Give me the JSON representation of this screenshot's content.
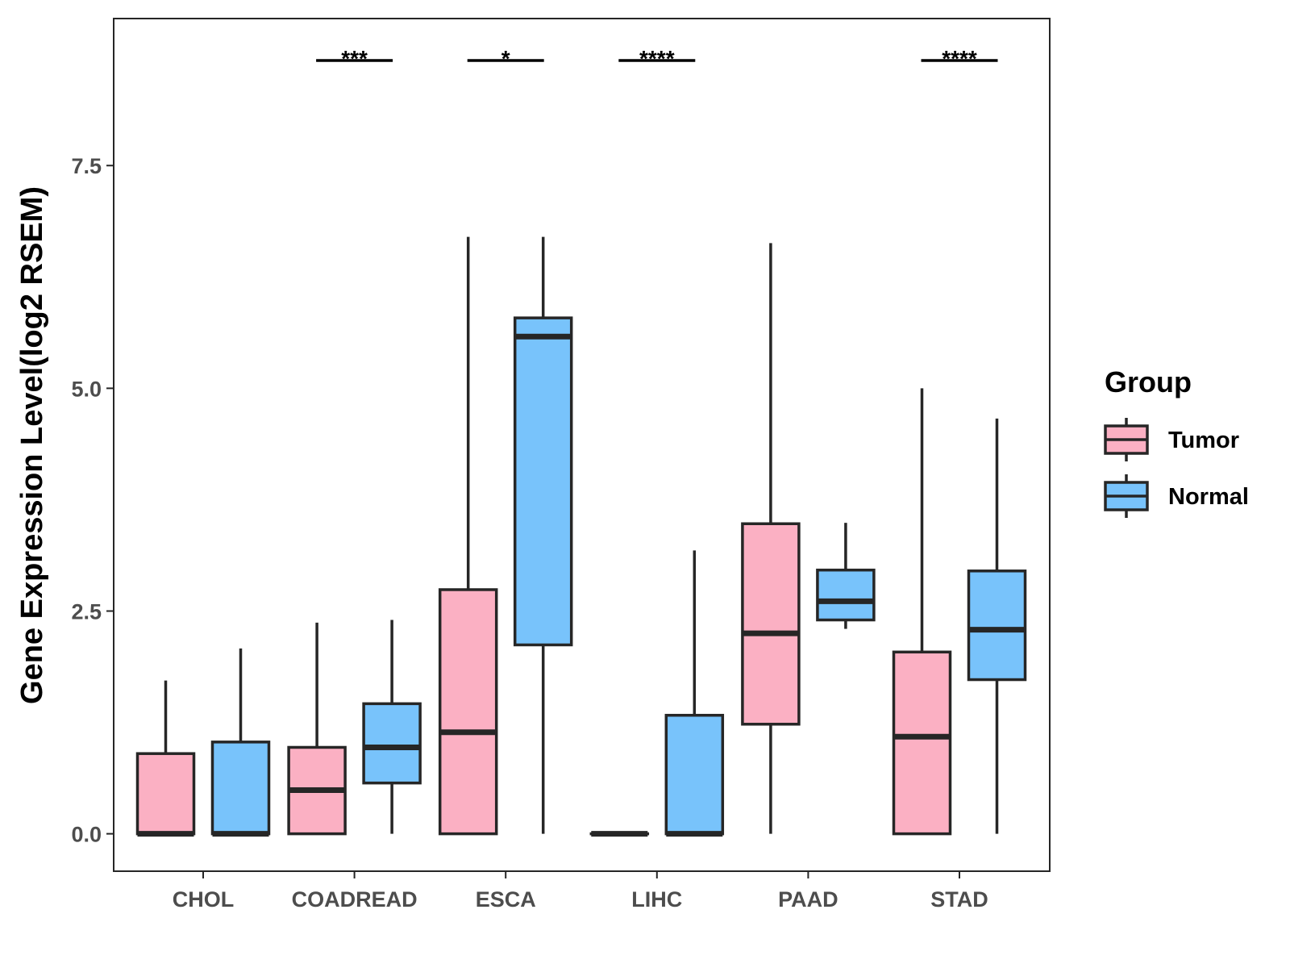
{
  "chart_data": {
    "type": "box",
    "title": "",
    "xlabel": "",
    "ylabel": "Gene Expression Level(log2 RSEM)",
    "ylim": [
      -0.42,
      9.15
    ],
    "yticks": [
      0.0,
      2.5,
      5.0,
      7.5
    ],
    "ytick_labels": [
      "0.0",
      "2.5",
      "5.0",
      "7.5"
    ],
    "categories": [
      "CHOL",
      "COADREAD",
      "ESCA",
      "LIHC",
      "PAAD",
      "STAD"
    ],
    "legend": {
      "title": "Group",
      "position": "right",
      "entries": [
        {
          "label": "Tumor",
          "color": "#fbb0c3"
        },
        {
          "label": "Normal",
          "color": "#78c3fb"
        }
      ]
    },
    "series": [
      {
        "name": "Tumor",
        "color": "#fbb0c3",
        "boxes": [
          {
            "min": 0.0,
            "q1": 0.0,
            "median": 0.0,
            "q3": 0.9,
            "max": 1.72
          },
          {
            "min": 0.0,
            "q1": 0.0,
            "median": 0.49,
            "q3": 0.97,
            "max": 2.37
          },
          {
            "min": 0.0,
            "q1": 0.0,
            "median": 1.14,
            "q3": 2.74,
            "max": 6.7
          },
          {
            "min": 0.0,
            "q1": 0.0,
            "median": 0.0,
            "q3": 0.0,
            "max": 0.0
          },
          {
            "min": 0.0,
            "q1": 1.23,
            "median": 2.25,
            "q3": 3.48,
            "max": 6.63
          },
          {
            "min": 0.0,
            "q1": 0.0,
            "median": 1.09,
            "q3": 2.04,
            "max": 5.0
          }
        ]
      },
      {
        "name": "Normal",
        "color": "#78c3fb",
        "boxes": [
          {
            "min": 0.0,
            "q1": 0.0,
            "median": 0.0,
            "q3": 1.03,
            "max": 2.08
          },
          {
            "min": 0.0,
            "q1": 0.57,
            "median": 0.97,
            "q3": 1.46,
            "max": 2.4
          },
          {
            "min": 0.0,
            "q1": 2.12,
            "median": 5.58,
            "q3": 5.79,
            "max": 6.7
          },
          {
            "min": 0.0,
            "q1": 0.0,
            "median": 0.0,
            "q3": 1.33,
            "max": 3.18
          },
          {
            "min": 2.3,
            "q1": 2.4,
            "median": 2.61,
            "q3": 2.96,
            "max": 3.49
          },
          {
            "min": 0.0,
            "q1": 1.73,
            "median": 2.29,
            "q3": 2.95,
            "max": 4.66
          }
        ]
      }
    ],
    "significance": [
      {
        "category": "COADREAD",
        "label": "***"
      },
      {
        "category": "ESCA",
        "label": "*"
      },
      {
        "category": "LIHC",
        "label": "****"
      },
      {
        "category": "STAD",
        "label": "****"
      }
    ]
  }
}
